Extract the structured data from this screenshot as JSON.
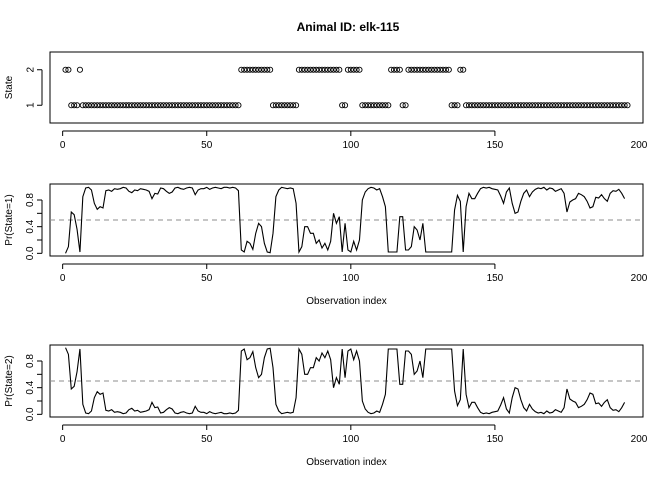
{
  "title": "Animal ID: elk-115",
  "chart_data": [
    {
      "type": "scatter",
      "ylabel": "State",
      "xlabel": "",
      "xlim": [
        0,
        195
      ],
      "ylim": [
        0.5,
        2.5
      ],
      "xticks": [
        0,
        50,
        100,
        150,
        200
      ],
      "yticks": [
        1,
        2
      ],
      "grid": false,
      "states": [
        2,
        2,
        1,
        1,
        1,
        2,
        1,
        1,
        1,
        1,
        1,
        1,
        1,
        1,
        1,
        1,
        1,
        1,
        1,
        1,
        1,
        1,
        1,
        1,
        1,
        1,
        1,
        1,
        1,
        1,
        1,
        1,
        1,
        1,
        1,
        1,
        1,
        1,
        1,
        1,
        1,
        1,
        1,
        1,
        1,
        1,
        1,
        1,
        1,
        1,
        1,
        1,
        1,
        1,
        1,
        1,
        1,
        1,
        1,
        1,
        1,
        2,
        2,
        2,
        2,
        2,
        2,
        2,
        2,
        2,
        2,
        2,
        1,
        1,
        1,
        1,
        1,
        1,
        1,
        1,
        1,
        2,
        2,
        2,
        2,
        2,
        2,
        2,
        2,
        2,
        2,
        2,
        2,
        2,
        2,
        2,
        1,
        1,
        2,
        2,
        2,
        2,
        2,
        1,
        1,
        1,
        1,
        1,
        1,
        1,
        1,
        1,
        1,
        2,
        2,
        2,
        2,
        1,
        1,
        2,
        2,
        2,
        2,
        2,
        2,
        2,
        2,
        2,
        2,
        2,
        2,
        2,
        2,
        2,
        1,
        1,
        1,
        2,
        2,
        1,
        1,
        1,
        1,
        1,
        1,
        1,
        1,
        1,
        1,
        1,
        1,
        1,
        1,
        1,
        1,
        1,
        1,
        1,
        1,
        1,
        1,
        1,
        1,
        1,
        1,
        1,
        1,
        1,
        1,
        1,
        1,
        1,
        1,
        1,
        1,
        1,
        1,
        1,
        1,
        1,
        1,
        1,
        1,
        1,
        1,
        1,
        1,
        1,
        1,
        1,
        1,
        1,
        1,
        1,
        1,
        1
      ]
    },
    {
      "type": "line",
      "ylabel": "Pr(State=1)",
      "xlabel": "Observation index",
      "xlim": [
        0,
        195
      ],
      "ylim": [
        0,
        1
      ],
      "xticks": [
        0,
        50,
        100,
        150,
        200
      ],
      "yticks": [
        0.0,
        0.2,
        0.4,
        0.6,
        0.8
      ],
      "ytick_labels": [
        "0.0",
        "0.4",
        "0.8"
      ],
      "reference_line": 0.5,
      "grid": false,
      "values": [
        0.0,
        0.1,
        0.62,
        0.58,
        0.36,
        0.02,
        0.85,
        0.98,
        0.99,
        0.95,
        0.75,
        0.66,
        0.7,
        0.68,
        0.94,
        0.95,
        0.93,
        0.97,
        0.96,
        0.97,
        0.99,
        0.98,
        0.93,
        0.91,
        0.95,
        0.94,
        0.97,
        0.96,
        0.95,
        0.93,
        0.82,
        0.9,
        0.89,
        0.98,
        0.97,
        0.93,
        0.9,
        0.92,
        0.98,
        0.99,
        0.97,
        0.96,
        0.98,
        0.99,
        0.98,
        0.88,
        0.95,
        0.97,
        0.97,
        0.99,
        0.96,
        0.98,
        0.99,
        0.98,
        0.97,
        0.99,
        0.99,
        0.98,
        0.99,
        0.98,
        0.94,
        0.05,
        0.02,
        0.18,
        0.15,
        0.06,
        0.3,
        0.45,
        0.4,
        0.15,
        0.02,
        0.01,
        0.3,
        0.85,
        0.95,
        0.99,
        0.98,
        0.97,
        0.98,
        0.97,
        0.75,
        0.02,
        0.1,
        0.4,
        0.4,
        0.3,
        0.3,
        0.15,
        0.2,
        0.08,
        0.15,
        0.05,
        0.18,
        0.6,
        0.45,
        0.55,
        0.02,
        0.45,
        0.05,
        0.02,
        0.18,
        0.05,
        0.2,
        0.8,
        0.92,
        0.97,
        0.99,
        0.98,
        0.95,
        0.97,
        0.85,
        0.7,
        0.02,
        0.02,
        0.02,
        0.02,
        0.55,
        0.55,
        0.05,
        0.05,
        0.1,
        0.4,
        0.35,
        0.2,
        0.45,
        0.02,
        0.02,
        0.02,
        0.02,
        0.02,
        0.02,
        0.02,
        0.02,
        0.02,
        0.02,
        0.65,
        0.87,
        0.78,
        0.02,
        0.7,
        0.9,
        0.82,
        0.82,
        0.9,
        0.97,
        0.99,
        0.98,
        0.99,
        0.97,
        0.96,
        0.95,
        0.86,
        0.75,
        0.92,
        0.98,
        0.75,
        0.6,
        0.62,
        0.78,
        0.9,
        0.95,
        0.85,
        0.92,
        0.96,
        0.98,
        0.97,
        0.99,
        0.95,
        0.98,
        0.97,
        0.93,
        0.95,
        0.97,
        0.9,
        0.62,
        0.77,
        0.8,
        0.82,
        0.9,
        0.88,
        0.85,
        0.78,
        0.68,
        0.7,
        0.84,
        0.83,
        0.88,
        0.82,
        0.78,
        0.9,
        0.94,
        0.93,
        0.96,
        0.9,
        0.82
      ]
    },
    {
      "type": "line",
      "ylabel": "Pr(State=2)",
      "xlabel": "Observation index",
      "xlim": [
        0,
        195
      ],
      "ylim": [
        0,
        1
      ],
      "xticks": [
        0,
        50,
        100,
        150,
        200
      ],
      "yticks": [
        0.0,
        0.2,
        0.4,
        0.6,
        0.8
      ],
      "ytick_labels": [
        "0.0",
        "0.4",
        "0.8"
      ],
      "reference_line": 0.5,
      "grid": false,
      "values": [
        1.0,
        0.9,
        0.38,
        0.42,
        0.64,
        0.98,
        0.15,
        0.02,
        0.01,
        0.05,
        0.25,
        0.34,
        0.3,
        0.32,
        0.06,
        0.05,
        0.07,
        0.03,
        0.04,
        0.03,
        0.01,
        0.02,
        0.07,
        0.09,
        0.05,
        0.06,
        0.03,
        0.04,
        0.05,
        0.07,
        0.18,
        0.1,
        0.11,
        0.02,
        0.03,
        0.07,
        0.1,
        0.08,
        0.02,
        0.01,
        0.03,
        0.04,
        0.02,
        0.01,
        0.02,
        0.12,
        0.05,
        0.03,
        0.03,
        0.01,
        0.04,
        0.02,
        0.01,
        0.02,
        0.03,
        0.01,
        0.01,
        0.02,
        0.01,
        0.02,
        0.06,
        0.95,
        0.98,
        0.82,
        0.85,
        0.94,
        0.7,
        0.55,
        0.6,
        0.85,
        0.98,
        0.99,
        0.7,
        0.15,
        0.05,
        0.01,
        0.02,
        0.03,
        0.02,
        0.03,
        0.25,
        0.98,
        0.9,
        0.6,
        0.6,
        0.7,
        0.7,
        0.85,
        0.8,
        0.92,
        0.85,
        0.95,
        0.82,
        0.4,
        0.55,
        0.45,
        0.98,
        0.55,
        0.95,
        0.98,
        0.82,
        0.95,
        0.8,
        0.2,
        0.08,
        0.03,
        0.01,
        0.02,
        0.05,
        0.03,
        0.15,
        0.3,
        0.98,
        0.98,
        0.98,
        0.98,
        0.45,
        0.45,
        0.95,
        0.95,
        0.9,
        0.6,
        0.65,
        0.8,
        0.55,
        0.98,
        0.98,
        0.98,
        0.98,
        0.98,
        0.98,
        0.98,
        0.98,
        0.98,
        0.98,
        0.35,
        0.13,
        0.22,
        0.98,
        0.3,
        0.1,
        0.18,
        0.18,
        0.1,
        0.03,
        0.01,
        0.02,
        0.01,
        0.03,
        0.04,
        0.05,
        0.14,
        0.25,
        0.08,
        0.02,
        0.25,
        0.4,
        0.38,
        0.22,
        0.1,
        0.05,
        0.15,
        0.08,
        0.04,
        0.02,
        0.03,
        0.01,
        0.05,
        0.02,
        0.03,
        0.07,
        0.05,
        0.03,
        0.1,
        0.38,
        0.23,
        0.2,
        0.18,
        0.1,
        0.12,
        0.15,
        0.22,
        0.32,
        0.3,
        0.16,
        0.17,
        0.12,
        0.18,
        0.22,
        0.1,
        0.06,
        0.07,
        0.04,
        0.1,
        0.18
      ]
    }
  ]
}
